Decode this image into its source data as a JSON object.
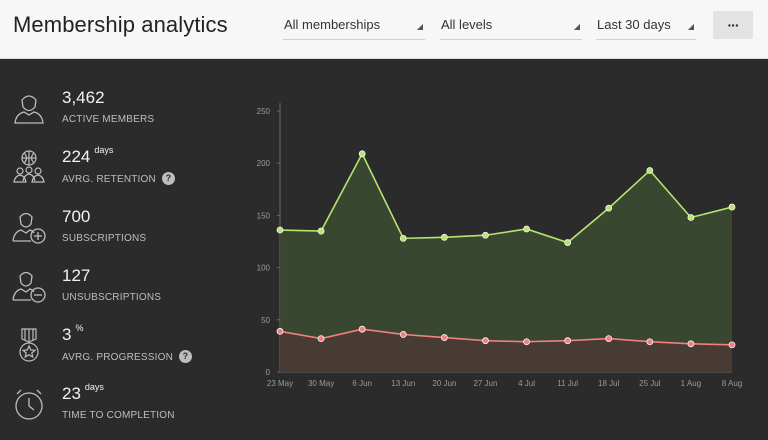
{
  "header": {
    "title": "Membership analytics",
    "filters": {
      "membership": "All memberships",
      "level": "All levels",
      "range": "Last 30 days"
    },
    "more_label": "···"
  },
  "stats": [
    {
      "value": "3,462",
      "unit": "",
      "label": "ACTIVE MEMBERS",
      "icon": "user-icon"
    },
    {
      "value": "224",
      "unit": "days",
      "label": "AVRG. RETENTION",
      "icon": "group-globe-icon",
      "help": "?"
    },
    {
      "value": "700",
      "unit": "",
      "label": "SUBSCRIPTIONS",
      "icon": "user-add-icon"
    },
    {
      "value": "127",
      "unit": "",
      "label": "UNSUBSCRIPTIONS",
      "icon": "user-remove-icon"
    },
    {
      "value": "3",
      "unit": "%",
      "label": "AVRG. PROGRESSION",
      "icon": "medal-icon",
      "help": "?"
    },
    {
      "value": "23",
      "unit": "days",
      "label": "TIME TO COMPLETION",
      "icon": "clock-icon"
    }
  ],
  "colors": {
    "green_line": "#b5e46f",
    "green_fill": "#3b4a32",
    "red_line": "#f08080",
    "red_fill": "#4a3a34"
  },
  "chart_data": {
    "type": "area",
    "x": [
      "23 May",
      "30 May",
      "6 Jun",
      "13 Jun",
      "20 Jun",
      "27 Jun",
      "4 Jul",
      "11 Jul",
      "18 Jul",
      "25 Jul",
      "1 Aug",
      "8 Aug"
    ],
    "ylim": [
      0,
      250
    ],
    "yticks": [
      0,
      50,
      100,
      150,
      200,
      250
    ],
    "series": [
      {
        "values": [
          136,
          135,
          209,
          128,
          129,
          131,
          137,
          124,
          157,
          193,
          148,
          158
        ]
      },
      {
        "values": [
          39,
          32,
          41,
          36,
          33,
          30,
          29,
          30,
          32,
          29,
          27,
          26
        ]
      }
    ]
  }
}
